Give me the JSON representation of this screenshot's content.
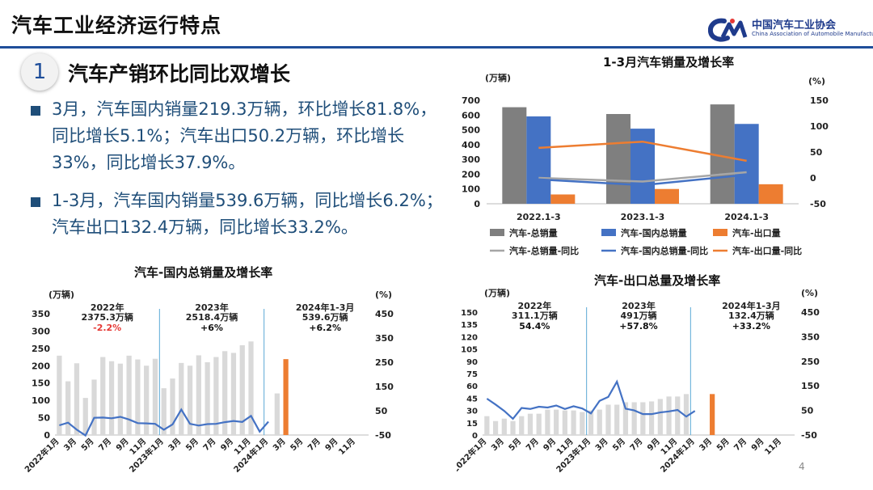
{
  "header": {
    "title": "汽车工业经济运行特点",
    "logo_cn": "中国汽车工业协会",
    "logo_en": "China Association of Automobile Manufacturers"
  },
  "section": {
    "number": "1",
    "title": "汽车产销环比同比双增长"
  },
  "bullets": [
    "3月，汽车国内销量219.3万辆，环比增长81.8%，同比增长5.1%；汽车出口50.2万辆，环比增长33%，同比增长37.9%。",
    "1-3月，汽车国内销量539.6万辆，同比增长6.2%；汽车出口132.4万辆，同比增长33.2%。"
  ],
  "page_number": "4",
  "colors": {
    "gray": "#7f7f7f",
    "blue": "#4472c4",
    "orange": "#ed7d31",
    "light_gray": "#d9d9d9",
    "accent_navy": "#1f4e79"
  },
  "chart_data": [
    {
      "id": "top",
      "type": "bar",
      "title": "1-3月汽车销量及增长率",
      "ylabel_left": "(万辆)",
      "ylabel_right": "(%)",
      "ylim_left": [
        0,
        700
      ],
      "ylim_right": [
        -50,
        150
      ],
      "yticks_left": [
        "0",
        "100",
        "200",
        "300",
        "400",
        "500",
        "600",
        "700"
      ],
      "yticks_right": [
        "-50",
        "0",
        "50",
        "100",
        "150"
      ],
      "categories": [
        "2022.1-3",
        "2023.1-3",
        "2024.1-3"
      ],
      "bar_series": [
        {
          "name": "汽车-总销量",
          "values": [
            653,
            607,
            672
          ]
        },
        {
          "name": "汽车-国内总销量",
          "values": [
            591,
            508,
            540
          ]
        },
        {
          "name": "汽车-出口量",
          "values": [
            63,
            100,
            132
          ]
        }
      ],
      "line_series": [
        {
          "name": "汽车-总销量-同比",
          "values": [
            0,
            -7,
            11
          ]
        },
        {
          "name": "汽车-国内总销量-同比",
          "values": [
            -3,
            -14,
            6
          ]
        },
        {
          "name": "汽车-出口量-同比",
          "values": [
            58,
            70,
            33
          ]
        }
      ],
      "legend": "bottom"
    },
    {
      "id": "domestic",
      "type": "bar",
      "title": "汽车-国内总销量及增长率",
      "ylabel_left": "(万辆)",
      "ylabel_right": "(%)",
      "ylim_left": [
        0,
        350
      ],
      "ylim_right": [
        -50,
        450
      ],
      "yticks_left": [
        "0",
        "50",
        "100",
        "150",
        "200",
        "250",
        "300",
        "350"
      ],
      "yticks_right": [
        "-50",
        "50",
        "150",
        "250",
        "350",
        "450"
      ],
      "x_labels": [
        "2022年1月",
        "3月",
        "5月",
        "7月",
        "9月",
        "11月",
        "2023年1月",
        "3月",
        "5月",
        "7月",
        "9月",
        "11月",
        "2024年1月",
        "3月",
        "5月",
        "7月",
        "9月",
        "11月"
      ],
      "bars": [
        229,
        155,
        207,
        107,
        160,
        225,
        213,
        206,
        229,
        218,
        200,
        220,
        135,
        163,
        208,
        200,
        230,
        210,
        225,
        242,
        237,
        259,
        270,
        0,
        0,
        120,
        219
      ],
      "growth": [
        -10,
        1,
        -28,
        -52,
        21,
        22,
        19,
        25,
        14,
        -1,
        -2,
        -4,
        -28,
        -6,
        55,
        -4,
        -11,
        -5,
        -4,
        3,
        8,
        4,
        29,
        -36,
        5
      ],
      "annotations": [
        {
          "year": "2022年",
          "total": "2375.3万辆",
          "growth": "-2.2%",
          "growth_color": "#e53935"
        },
        {
          "year": "2023年",
          "total": "2518.4万辆",
          "growth": "+6%",
          "growth_color": "#111111"
        },
        {
          "year": "2024年1-3月",
          "total": "539.6万辆",
          "growth": "+6.2%",
          "growth_color": "#111111"
        }
      ]
    },
    {
      "id": "export",
      "type": "bar",
      "title": "汽车-出口总量及增长率",
      "ylabel_left": "(万辆)",
      "ylabel_right": "(%)",
      "ylim_left": [
        0,
        150
      ],
      "ylim_right": [
        -50,
        450
      ],
      "yticks_left": [
        "0",
        "15",
        "30",
        "45",
        "60",
        "75",
        "90",
        "105",
        "120",
        "135",
        "150"
      ],
      "yticks_right": [
        "-50",
        "50",
        "150",
        "250",
        "350",
        "450"
      ],
      "x_labels": [
        "2022年1月",
        "3月",
        "5月",
        "7月",
        "9月",
        "11月",
        "2023年1月",
        "3月",
        "5月",
        "7月",
        "9月",
        "11月",
        "2024年1月",
        "3月",
        "5月",
        "7月",
        "9月",
        "11月"
      ],
      "bars": [
        23,
        17,
        20,
        17,
        23,
        26,
        26,
        31,
        31,
        30,
        30,
        28,
        30,
        31,
        37,
        37,
        40,
        40,
        40,
        41,
        44,
        47,
        47,
        50,
        0,
        0,
        50
      ],
      "growth": [
        98,
        74,
        48,
        16,
        60,
        56,
        65,
        62,
        70,
        56,
        67,
        58,
        38,
        89,
        105,
        167,
        57,
        50,
        35,
        35,
        42,
        46,
        52,
        25,
        48
      ],
      "annotations": [
        {
          "year": "2022年",
          "total": "311.1万辆",
          "growth": "54.4%"
        },
        {
          "year": "2023年",
          "total": "491万辆",
          "growth": "+57.8%"
        },
        {
          "year": "2024年1-3月",
          "total": "132.4万辆",
          "growth": "+33.2%"
        }
      ]
    }
  ]
}
